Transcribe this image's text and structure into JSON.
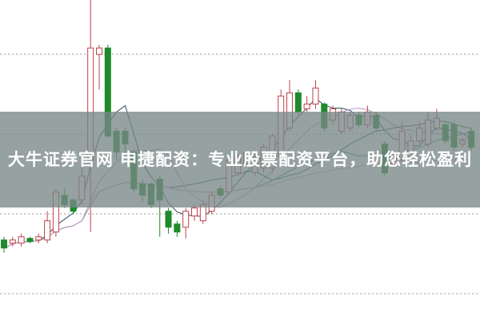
{
  "banner": {
    "text": "大牛证券官网 申捷配资：专业股票配资平台，助您轻松盈利"
  },
  "colors": {
    "up": "#c0404a",
    "down": "#1e8a2a",
    "grid": "#999999",
    "ma": [
      "#2f4f5f",
      "#b09ac0",
      "#2e5a3a",
      "#3a8a8a",
      "#d0a0c8"
    ]
  },
  "chart_data": {
    "type": "candlestick",
    "title": "",
    "xlabel": "",
    "ylabel": "",
    "ylim": [
      0,
      100
    ],
    "grid": "horizontal-dotted",
    "moving_averages": [
      5,
      10,
      20,
      30,
      60
    ],
    "candles": [
      [
        25,
        22.5,
        26,
        21
      ],
      [
        24,
        25,
        26,
        23
      ],
      [
        24,
        26,
        27,
        23
      ],
      [
        25.5,
        24.5,
        26,
        24
      ],
      [
        25,
        26,
        27,
        24
      ],
      [
        25,
        31,
        34,
        24
      ],
      [
        27.5,
        40,
        41,
        26
      ],
      [
        39,
        36,
        41,
        35
      ],
      [
        37.5,
        34,
        38,
        33
      ],
      [
        37.5,
        45,
        50,
        36
      ],
      [
        50,
        85,
        100,
        27.5
      ],
      [
        83,
        85,
        86,
        72
      ],
      [
        85,
        57.5,
        86,
        57
      ],
      [
        59,
        52.5,
        60,
        50
      ],
      [
        59,
        55,
        60,
        52
      ],
      [
        52.5,
        41,
        53,
        40
      ],
      [
        42.5,
        39,
        44,
        37
      ],
      [
        42.5,
        36,
        43,
        35
      ],
      [
        44,
        37.5,
        45,
        26
      ],
      [
        34,
        29,
        35,
        27
      ],
      [
        30,
        27.5,
        31,
        26
      ],
      [
        29,
        34,
        35,
        25.5
      ],
      [
        32.5,
        35,
        36,
        31
      ],
      [
        31,
        36,
        37,
        30
      ],
      [
        34,
        39,
        40,
        33
      ],
      [
        41,
        39,
        42,
        38
      ],
      [
        40,
        50,
        51,
        39
      ],
      [
        46,
        51,
        52,
        45
      ],
      [
        49,
        52.5,
        53,
        48
      ],
      [
        46,
        51,
        52,
        45
      ],
      [
        47.5,
        54,
        55,
        46
      ],
      [
        47.5,
        57.5,
        58,
        46
      ],
      [
        51,
        70,
        72,
        50
      ],
      [
        60,
        71,
        75,
        59
      ],
      [
        71,
        65,
        72,
        64
      ],
      [
        66,
        67.5,
        70,
        65
      ],
      [
        67.5,
        72.5,
        75,
        66
      ],
      [
        67.5,
        60,
        68,
        59
      ],
      [
        62.5,
        66,
        67,
        61
      ],
      [
        59,
        65,
        66,
        58
      ],
      [
        60,
        64,
        65,
        59
      ],
      [
        64,
        61,
        65,
        60
      ],
      [
        61,
        65,
        67,
        60
      ],
      [
        64,
        60,
        65,
        59
      ],
      [
        55,
        46,
        56,
        45
      ],
      [
        49,
        51,
        52,
        48
      ],
      [
        50,
        59,
        62,
        49
      ],
      [
        51,
        56,
        58,
        50
      ],
      [
        56,
        60,
        62,
        55
      ],
      [
        55,
        62.5,
        65,
        54
      ],
      [
        60,
        63,
        66,
        59
      ],
      [
        61,
        56,
        62,
        55
      ],
      [
        61,
        54,
        62,
        53
      ],
      [
        55,
        56,
        57,
        54
      ],
      [
        59,
        54,
        60,
        53
      ]
    ]
  }
}
